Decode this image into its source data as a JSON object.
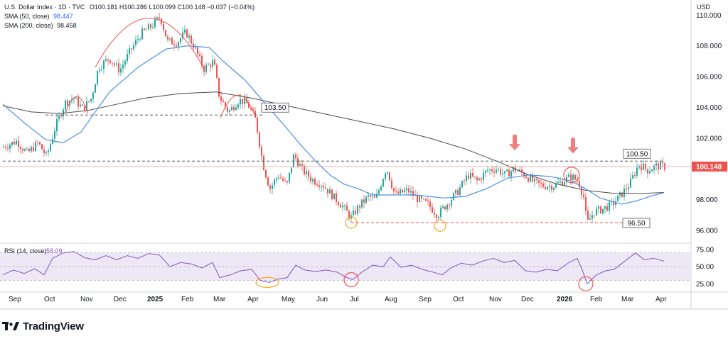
{
  "header": {
    "symbol": "U.S. Dollar Index · 1D · TVC",
    "ohlc": "O100.181 H100.286 L100.099 C100.148 −0.037 (−0.04%)",
    "sma50_label": "SMA (50, close)",
    "sma50_value": "98.447",
    "sma200_label": "SMA (200, close)",
    "sma200_value": "98.458"
  },
  "brand": {
    "name": "TradingView",
    "icon": "tradingview-logo-icon"
  },
  "colors": {
    "up": "#26a69a",
    "down": "#ef5350",
    "sma50": "#4a90e2",
    "sma200": "#4b4b4b",
    "rsi": "#7e57c2",
    "rsi_band": "#ede7f6",
    "annotation_red": "#ef5350",
    "annotation_orange": "#f5a623",
    "current_price": "#ef5350"
  },
  "chart_data": [
    {
      "type": "candlestick",
      "currency_label": "USD",
      "y_ticks": [
        "110.000",
        "108.000",
        "106.000",
        "104.000",
        "102.000",
        "100.000",
        "98.000",
        "96.000"
      ],
      "ylim": [
        95.3,
        110.8
      ],
      "x_ticks": [
        "Sep",
        "Oct",
        "Nov",
        "Dec",
        "2025",
        "Feb",
        "Mar",
        "Apr",
        "May",
        "Jun",
        "Jul",
        "Aug",
        "Sep",
        "Oct",
        "Nov",
        "Dec",
        "2026",
        "Feb",
        "Mar",
        "Apr"
      ],
      "price_path": [
        [
          0,
          101.4
        ],
        [
          20,
          101.8
        ],
        [
          35,
          101.0
        ],
        [
          50,
          101.7
        ],
        [
          62,
          100.8
        ],
        [
          75,
          102.8
        ],
        [
          88,
          104.3
        ],
        [
          100,
          104.6
        ],
        [
          113,
          103.9
        ],
        [
          125,
          104.6
        ],
        [
          135,
          106.6
        ],
        [
          150,
          107.2
        ],
        [
          165,
          106.4
        ],
        [
          180,
          107.7
        ],
        [
          195,
          108.8
        ],
        [
          210,
          109.3
        ],
        [
          222,
          109.9
        ],
        [
          232,
          108.3
        ],
        [
          245,
          108.2
        ],
        [
          258,
          108.9
        ],
        [
          270,
          107.9
        ],
        [
          283,
          106.5
        ],
        [
          297,
          107.0
        ],
        [
          305,
          104.7
        ],
        [
          318,
          103.7
        ],
        [
          333,
          104.5
        ],
        [
          345,
          104.2
        ],
        [
          356,
          103.2
        ],
        [
          366,
          100.4
        ],
        [
          376,
          98.7
        ],
        [
          388,
          99.6
        ],
        [
          400,
          98.9
        ],
        [
          410,
          100.9
        ],
        [
          422,
          99.9
        ],
        [
          435,
          99.3
        ],
        [
          450,
          99.0
        ],
        [
          465,
          98.2
        ],
        [
          478,
          97.6
        ],
        [
          490,
          96.8
        ],
        [
          502,
          97.6
        ],
        [
          515,
          98.2
        ],
        [
          525,
          98.0
        ],
        [
          540,
          100.1
        ],
        [
          552,
          98.3
        ],
        [
          570,
          98.6
        ],
        [
          585,
          98.0
        ],
        [
          598,
          97.7
        ],
        [
          612,
          97.0
        ],
        [
          625,
          97.7
        ],
        [
          640,
          98.5
        ],
        [
          655,
          99.6
        ],
        [
          668,
          99.2
        ],
        [
          682,
          99.9
        ],
        [
          695,
          100.0
        ],
        [
          707,
          99.6
        ],
        [
          720,
          100.0
        ],
        [
          735,
          99.6
        ],
        [
          748,
          99.1
        ],
        [
          760,
          98.9
        ],
        [
          775,
          98.9
        ],
        [
          788,
          99.2
        ],
        [
          800,
          99.5
        ],
        [
          810,
          99.2
        ],
        [
          818,
          98.1
        ],
        [
          822,
          96.4
        ],
        [
          832,
          97.2
        ],
        [
          845,
          97.4
        ],
        [
          858,
          97.7
        ],
        [
          870,
          98.3
        ],
        [
          882,
          99.0
        ],
        [
          895,
          100.3
        ],
        [
          908,
          99.9
        ],
        [
          920,
          100.2
        ],
        [
          930,
          100.15
        ]
      ],
      "sma50": [
        [
          0,
          104.2
        ],
        [
          30,
          103.0
        ],
        [
          60,
          101.9
        ],
        [
          85,
          101.7
        ],
        [
          110,
          102.4
        ],
        [
          150,
          105.0
        ],
        [
          190,
          106.6
        ],
        [
          230,
          107.8
        ],
        [
          260,
          108.0
        ],
        [
          290,
          107.9
        ],
        [
          310,
          107.0
        ],
        [
          340,
          105.8
        ],
        [
          370,
          104.2
        ],
        [
          400,
          102.6
        ],
        [
          420,
          101.5
        ],
        [
          440,
          100.5
        ],
        [
          460,
          99.6
        ],
        [
          480,
          99.0
        ],
        [
          500,
          98.7
        ],
        [
          520,
          98.3
        ],
        [
          550,
          98.3
        ],
        [
          580,
          98.3
        ],
        [
          620,
          98.1
        ],
        [
          650,
          98.2
        ],
        [
          680,
          98.7
        ],
        [
          710,
          99.4
        ],
        [
          740,
          99.6
        ],
        [
          770,
          99.5
        ],
        [
          800,
          99.2
        ],
        [
          820,
          98.7
        ],
        [
          840,
          98.1
        ],
        [
          870,
          97.7
        ],
        [
          890,
          97.9
        ],
        [
          910,
          98.2
        ],
        [
          930,
          98.45
        ]
      ],
      "sma200": [
        [
          0,
          104.1
        ],
        [
          40,
          103.7
        ],
        [
          80,
          103.6
        ],
        [
          120,
          103.8
        ],
        [
          160,
          104.2
        ],
        [
          200,
          104.6
        ],
        [
          250,
          104.9
        ],
        [
          300,
          105.0
        ],
        [
          350,
          104.6
        ],
        [
          400,
          104.1
        ],
        [
          450,
          103.6
        ],
        [
          500,
          103.1
        ],
        [
          550,
          102.6
        ],
        [
          600,
          102.0
        ],
        [
          650,
          101.3
        ],
        [
          700,
          100.4
        ],
        [
          740,
          99.6
        ],
        [
          780,
          99.0
        ],
        [
          820,
          98.6
        ],
        [
          860,
          98.4
        ],
        [
          900,
          98.4
        ],
        [
          930,
          98.46
        ]
      ],
      "current_price": {
        "label": "100.148",
        "value": 100.148
      },
      "levels": [
        {
          "label": "103.50",
          "value": 103.5,
          "style": "dashed-dark",
          "x_from": 60,
          "x_to": 366
        },
        {
          "label": "100.50",
          "value": 100.5,
          "style": "dashed-dark",
          "x_from": 0,
          "x_to": 930
        },
        {
          "label": "96.50",
          "value": 96.5,
          "style": "dashed-red",
          "x_from": 490,
          "x_to": 875
        }
      ],
      "arcs": [
        {
          "kind": "dome",
          "x_from": 130,
          "x_to": 282,
          "value_base": 106.6,
          "value_top": 109.8
        },
        {
          "kind": "dome",
          "x_from": 88,
          "x_to": 120,
          "value_base": 103.6,
          "value_top": 104.7
        },
        {
          "kind": "dome",
          "x_from": 306,
          "x_to": 356,
          "value_base": 103.3,
          "value_top": 104.8
        }
      ],
      "markers": [
        {
          "kind": "circle",
          "color": "orange",
          "x": 490,
          "value": 96.5
        },
        {
          "kind": "circle",
          "color": "orange",
          "x": 615,
          "value": 96.3
        },
        {
          "kind": "circle",
          "color": "red",
          "x": 800,
          "value": 99.6
        },
        {
          "kind": "arrow-down",
          "x": 720,
          "value": 101.2
        },
        {
          "kind": "arrow-down",
          "x": 802,
          "value": 101.0
        }
      ]
    },
    {
      "type": "line",
      "name_label": "RSI (14, close)",
      "value_label": "58.09",
      "y_ticks": [
        "75.00",
        "50.00",
        "25.00"
      ],
      "ylim": [
        15,
        80
      ],
      "band": [
        30,
        70
      ],
      "values": [
        [
          0,
          38
        ],
        [
          15,
          45
        ],
        [
          30,
          40
        ],
        [
          45,
          47
        ],
        [
          58,
          38
        ],
        [
          70,
          62
        ],
        [
          85,
          70
        ],
        [
          100,
          72
        ],
        [
          115,
          63
        ],
        [
          130,
          60
        ],
        [
          145,
          66
        ],
        [
          160,
          60
        ],
        [
          175,
          66
        ],
        [
          190,
          62
        ],
        [
          205,
          69
        ],
        [
          220,
          67
        ],
        [
          235,
          50
        ],
        [
          250,
          56
        ],
        [
          265,
          54
        ],
        [
          280,
          48
        ],
        [
          295,
          56
        ],
        [
          305,
          34
        ],
        [
          320,
          38
        ],
        [
          335,
          44
        ],
        [
          350,
          46
        ],
        [
          362,
          30
        ],
        [
          375,
          27
        ],
        [
          388,
          32
        ],
        [
          400,
          34
        ],
        [
          412,
          52
        ],
        [
          425,
          45
        ],
        [
          440,
          43
        ],
        [
          455,
          45
        ],
        [
          470,
          42
        ],
        [
          482,
          35
        ],
        [
          492,
          31
        ],
        [
          505,
          42
        ],
        [
          520,
          52
        ],
        [
          535,
          50
        ],
        [
          545,
          64
        ],
        [
          560,
          49
        ],
        [
          575,
          52
        ],
        [
          590,
          46
        ],
        [
          605,
          42
        ],
        [
          618,
          38
        ],
        [
          630,
          48
        ],
        [
          645,
          55
        ],
        [
          660,
          52
        ],
        [
          675,
          58
        ],
        [
          690,
          62
        ],
        [
          705,
          56
        ],
        [
          720,
          59
        ],
        [
          735,
          44
        ],
        [
          750,
          42
        ],
        [
          765,
          46
        ],
        [
          780,
          44
        ],
        [
          795,
          55
        ],
        [
          808,
          62
        ],
        [
          815,
          45
        ],
        [
          822,
          25
        ],
        [
          835,
          38
        ],
        [
          848,
          44
        ],
        [
          860,
          46
        ],
        [
          875,
          58
        ],
        [
          890,
          70
        ],
        [
          902,
          60
        ],
        [
          915,
          62
        ],
        [
          930,
          58
        ]
      ],
      "markers": [
        {
          "kind": "ellipse",
          "color": "orange",
          "x": 372,
          "value": 27
        },
        {
          "kind": "circle",
          "color": "red",
          "x": 490,
          "value": 31
        },
        {
          "kind": "circle",
          "color": "red",
          "x": 820,
          "value": 25
        }
      ]
    }
  ]
}
